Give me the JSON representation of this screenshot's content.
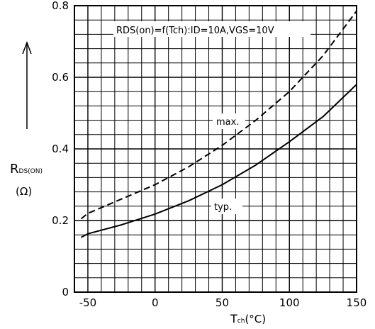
{
  "chart_data": {
    "type": "line",
    "title": "",
    "annotation": "RDS(on)=f(Tch):ID=10A,VGS=10V",
    "ylabel_main": "R",
    "ylabel_sub": "DS(ON)",
    "yunit": "(Ω)",
    "xlabel_main": "T",
    "xlabel_sub": "ch",
    "xunit": "(°C)",
    "xlim": [
      -60,
      150
    ],
    "ylim": [
      0,
      0.8
    ],
    "xticks": [
      -50,
      0,
      50,
      100,
      150
    ],
    "yticks": [
      0,
      0.2,
      0.4,
      0.6,
      0.8
    ],
    "xtick_labels": [
      "-50",
      "0",
      "50",
      "100",
      "150"
    ],
    "ytick_labels": [
      "0",
      "0.2",
      "0.4",
      "0.6",
      "0.8"
    ],
    "grid": true,
    "series": [
      {
        "name": "max.",
        "style": "dashed",
        "x": [
          -55,
          -50,
          -25,
          0,
          25,
          50,
          75,
          100,
          125,
          150
        ],
        "y": [
          0.205,
          0.22,
          0.26,
          0.3,
          0.35,
          0.41,
          0.48,
          0.56,
          0.66,
          0.785
        ]
      },
      {
        "name": "typ.",
        "style": "solid",
        "x": [
          -55,
          -50,
          -25,
          0,
          25,
          50,
          75,
          100,
          125,
          150
        ],
        "y": [
          0.153,
          0.163,
          0.188,
          0.218,
          0.255,
          0.3,
          0.355,
          0.42,
          0.49,
          0.58
        ]
      }
    ]
  }
}
